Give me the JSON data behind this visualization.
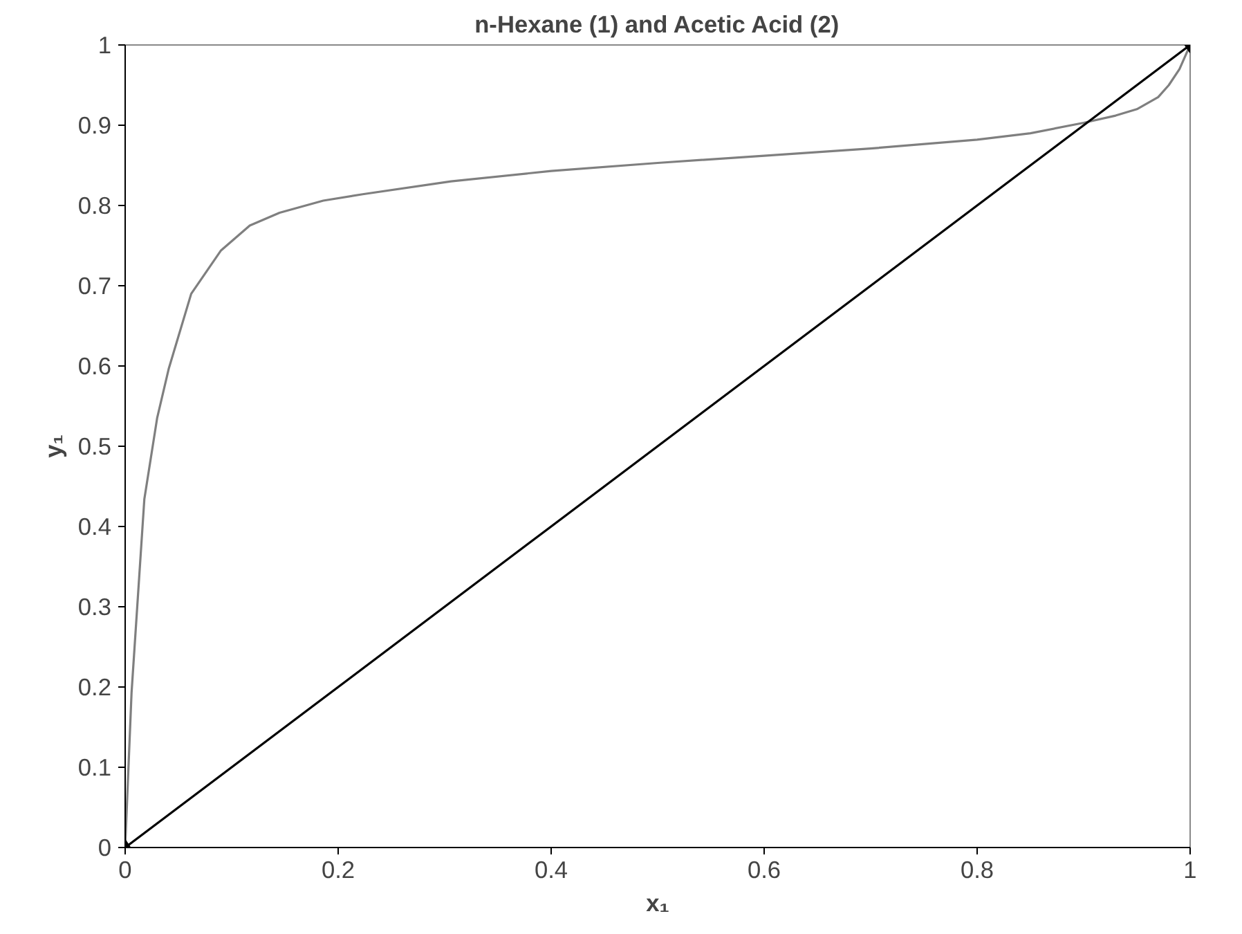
{
  "chart_data": {
    "type": "line",
    "title": "n-Hexane (1) and Acetic Acid (2)",
    "xlabel": "x₁",
    "ylabel": "y₁",
    "xlim": [
      0,
      1
    ],
    "ylim": [
      0,
      1
    ],
    "xticks": [
      0,
      0.2,
      0.4,
      0.6,
      0.8,
      1
    ],
    "yticks": [
      0,
      0.1,
      0.2,
      0.3,
      0.4,
      0.5,
      0.6,
      0.7,
      0.8,
      0.9,
      1
    ],
    "grid": false,
    "series": [
      {
        "color": "#7f7f7f",
        "marker": "none",
        "x": [
          0,
          0.006,
          0.018,
          0.03,
          0.041,
          0.062,
          0.09,
          0.117,
          0.145,
          0.186,
          0.223,
          0.306,
          0.4,
          0.5,
          0.6,
          0.7,
          0.8,
          0.85,
          0.9,
          0.93,
          0.95,
          0.97,
          0.98,
          0.99,
          1
        ],
        "values": [
          0,
          0.193,
          0.434,
          0.535,
          0.597,
          0.69,
          0.744,
          0.775,
          0.791,
          0.806,
          0.814,
          0.83,
          0.843,
          0.853,
          0.862,
          0.871,
          0.882,
          0.89,
          0.903,
          0.912,
          0.92,
          0.935,
          0.95,
          0.97,
          1
        ]
      },
      {
        "color": "#000000",
        "marker": "diamond",
        "x": [
          0,
          1
        ],
        "values": [
          0,
          1
        ]
      }
    ]
  }
}
